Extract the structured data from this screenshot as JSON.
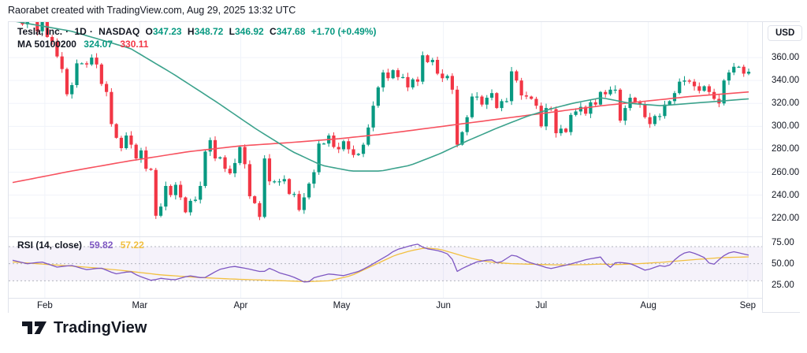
{
  "header": {
    "attribution": "Raorabet created with TradingView.com, Aug 29, 2025 13:32 UTC"
  },
  "legend": {
    "symbol": "Tesla, Inc.",
    "sep": "·",
    "resolution": "1D",
    "exchange": "NASDAQ",
    "ohlc": [
      {
        "label": "O",
        "value": "347.23"
      },
      {
        "label": "H",
        "value": "348.72"
      },
      {
        "label": "L",
        "value": "346.92"
      },
      {
        "label": "C",
        "value": "347.68"
      }
    ],
    "change": "+1.70 (+0.49%)"
  },
  "ma": {
    "label": "MA 50100200",
    "values": [
      "324.07",
      "330.11"
    ]
  },
  "rsi": {
    "label": "RSI (14, close)",
    "values": [
      "59.82",
      "57.22"
    ]
  },
  "axis": {
    "currency": "USD"
  },
  "footer": {
    "brand": "TradingView"
  },
  "colors": {
    "text": "#131722",
    "border": "#e0e3eb",
    "grid": "#f0f3fa",
    "up": "#089981",
    "down": "#f23645",
    "ma_fast": "#3ba28c",
    "ma_slow": "#f7525f",
    "rsi": "#7e57c2",
    "rsima": "#f2c040",
    "band_line": "#b2b5be",
    "band_fill": "rgba(126,87,194,0.08)",
    "oversold_fill": "rgba(242,54,69,0.18)"
  },
  "chart_data": {
    "type": "candlestick",
    "title": "Tesla, Inc · 1D · NASDAQ",
    "price_pane": {
      "ylim": [
        204,
        391
      ],
      "ticks": [
        {
          "v": 360,
          "l": "360.00"
        },
        {
          "v": 340,
          "l": "340.00"
        },
        {
          "v": 320,
          "l": "320.00"
        },
        {
          "v": 300,
          "l": "300.00"
        },
        {
          "v": 280,
          "l": "280.00"
        },
        {
          "v": 260,
          "l": "260.00"
        },
        {
          "v": 240,
          "l": "240.00"
        },
        {
          "v": 220,
          "l": "220.00"
        }
      ]
    },
    "months": [
      {
        "label": "Feb",
        "f": 0.048
      },
      {
        "label": "Mar",
        "f": 0.174
      },
      {
        "label": "Apr",
        "f": 0.308
      },
      {
        "label": "May",
        "f": 0.442
      },
      {
        "label": "Jun",
        "f": 0.577
      },
      {
        "label": "Jul",
        "f": 0.707
      },
      {
        "label": "Aug",
        "f": 0.849
      },
      {
        "label": "Sep",
        "f": 0.981
      }
    ],
    "candles": {
      "first_open": 394,
      "closes": [
        397,
        398,
        389,
        400,
        404,
        383,
        392,
        378,
        374,
        361,
        350,
        328,
        336,
        355,
        355,
        354,
        360,
        354,
        337,
        330,
        302,
        290,
        281,
        292,
        284,
        272,
        279,
        263,
        262,
        222,
        230,
        248,
        240,
        249,
        238,
        225,
        235,
        236,
        248,
        278,
        288,
        272,
        273,
        263,
        259,
        268,
        282,
        267,
        239,
        233,
        221,
        272,
        252,
        252,
        252,
        254,
        241,
        241,
        227,
        238,
        250,
        260,
        285,
        285,
        292,
        282,
        280,
        287,
        280,
        275,
        276,
        284,
        299,
        318,
        334,
        347,
        342,
        349,
        343,
        343,
        334,
        341,
        339,
        362,
        356,
        358,
        346,
        342,
        344,
        332,
        284,
        295,
        308,
        326,
        326,
        319,
        325,
        329,
        316,
        322,
        322,
        348,
        340,
        327,
        326,
        324,
        318,
        300,
        316,
        315,
        294,
        298,
        295,
        310,
        313,
        317,
        311,
        321,
        319,
        330,
        328,
        332,
        332,
        305,
        316,
        325,
        321,
        319,
        308,
        302,
        309,
        309,
        319,
        322,
        329,
        339,
        340,
        339,
        335,
        331,
        335,
        330,
        324,
        320,
        340,
        347,
        352,
        352,
        346,
        347.68
      ]
    },
    "ma_fast_anchors": [
      [
        0,
        392
      ],
      [
        0.08,
        383
      ],
      [
        0.16,
        368
      ],
      [
        0.22,
        345
      ],
      [
        0.28,
        320
      ],
      [
        0.33,
        298
      ],
      [
        0.38,
        278
      ],
      [
        0.42,
        266
      ],
      [
        0.46,
        261
      ],
      [
        0.5,
        261
      ],
      [
        0.54,
        266
      ],
      [
        0.58,
        276
      ],
      [
        0.62,
        288
      ],
      [
        0.66,
        299
      ],
      [
        0.7,
        309
      ],
      [
        0.73,
        315
      ],
      [
        0.76,
        320
      ],
      [
        0.8,
        325
      ],
      [
        0.84,
        320
      ],
      [
        0.88,
        318
      ],
      [
        0.92,
        320
      ],
      [
        0.96,
        322
      ],
      [
        1,
        324
      ]
    ],
    "ma_slow_anchors": [
      [
        0,
        251
      ],
      [
        0.08,
        261
      ],
      [
        0.16,
        270
      ],
      [
        0.24,
        278
      ],
      [
        0.31,
        283
      ],
      [
        0.38,
        286
      ],
      [
        0.44,
        289
      ],
      [
        0.5,
        293
      ],
      [
        0.56,
        298
      ],
      [
        0.62,
        303
      ],
      [
        0.68,
        308
      ],
      [
        0.74,
        313
      ],
      [
        0.8,
        318
      ],
      [
        0.86,
        322
      ],
      [
        0.92,
        326
      ],
      [
        1,
        330
      ]
    ],
    "rsi_pane": {
      "ylim": [
        10,
        82
      ],
      "band": [
        30,
        70
      ],
      "mid": 50,
      "ticks": [
        {
          "v": 75,
          "l": "75.00"
        },
        {
          "v": 50,
          "l": "50.00"
        },
        {
          "v": 25,
          "l": "25.00"
        }
      ],
      "rsi_anchors": [
        [
          0,
          54
        ],
        [
          0.02,
          50
        ],
        [
          0.04,
          52
        ],
        [
          0.06,
          46
        ],
        [
          0.08,
          48
        ],
        [
          0.1,
          43
        ],
        [
          0.12,
          45
        ],
        [
          0.14,
          38
        ],
        [
          0.16,
          41
        ],
        [
          0.17,
          36
        ],
        [
          0.19,
          30
        ],
        [
          0.2,
          33
        ],
        [
          0.22,
          31
        ],
        [
          0.24,
          36
        ],
        [
          0.26,
          33
        ],
        [
          0.28,
          43
        ],
        [
          0.3,
          47
        ],
        [
          0.32,
          44
        ],
        [
          0.34,
          40
        ],
        [
          0.35,
          45
        ],
        [
          0.36,
          40
        ],
        [
          0.38,
          35
        ],
        [
          0.39,
          31
        ],
        [
          0.4,
          27
        ],
        [
          0.41,
          34
        ],
        [
          0.43,
          38
        ],
        [
          0.45,
          36
        ],
        [
          0.47,
          41
        ],
        [
          0.48,
          45
        ],
        [
          0.5,
          55
        ],
        [
          0.51,
          60
        ],
        [
          0.52,
          66
        ],
        [
          0.54,
          71
        ],
        [
          0.55,
          73
        ],
        [
          0.56,
          68
        ],
        [
          0.58,
          65
        ],
        [
          0.595,
          60
        ],
        [
          0.605,
          39
        ],
        [
          0.61,
          44
        ],
        [
          0.63,
          52
        ],
        [
          0.65,
          55
        ],
        [
          0.66,
          50
        ],
        [
          0.68,
          61
        ],
        [
          0.7,
          52
        ],
        [
          0.72,
          47
        ],
        [
          0.73,
          44
        ],
        [
          0.75,
          48
        ],
        [
          0.76,
          50
        ],
        [
          0.78,
          55
        ],
        [
          0.8,
          58
        ],
        [
          0.81,
          44
        ],
        [
          0.82,
          52
        ],
        [
          0.84,
          50
        ],
        [
          0.85,
          46
        ],
        [
          0.86,
          42
        ],
        [
          0.88,
          48
        ],
        [
          0.89,
          46
        ],
        [
          0.9,
          55
        ],
        [
          0.91,
          62
        ],
        [
          0.92,
          64
        ],
        [
          0.93,
          61
        ],
        [
          0.94,
          57
        ],
        [
          0.95,
          47
        ],
        [
          0.96,
          55
        ],
        [
          0.97,
          62
        ],
        [
          0.98,
          64
        ],
        [
          0.99,
          62
        ],
        [
          1,
          60
        ]
      ],
      "rsima_anchors": [
        [
          0,
          52
        ],
        [
          0.05,
          49
        ],
        [
          0.1,
          46
        ],
        [
          0.15,
          42
        ],
        [
          0.2,
          37
        ],
        [
          0.25,
          34
        ],
        [
          0.3,
          32
        ],
        [
          0.35,
          30.5
        ],
        [
          0.4,
          29
        ],
        [
          0.43,
          30
        ],
        [
          0.46,
          36
        ],
        [
          0.48,
          44
        ],
        [
          0.5,
          52
        ],
        [
          0.52,
          60
        ],
        [
          0.54,
          65
        ],
        [
          0.56,
          68.5
        ],
        [
          0.58,
          67
        ],
        [
          0.6,
          62
        ],
        [
          0.62,
          57
        ],
        [
          0.64,
          53
        ],
        [
          0.66,
          51
        ],
        [
          0.68,
          50
        ],
        [
          0.7,
          49.5
        ],
        [
          0.72,
          49
        ],
        [
          0.75,
          48.5
        ],
        [
          0.78,
          49
        ],
        [
          0.8,
          49.5
        ],
        [
          0.82,
          49
        ],
        [
          0.85,
          50
        ],
        [
          0.88,
          51.5
        ],
        [
          0.9,
          53
        ],
        [
          0.93,
          55
        ],
        [
          0.96,
          57
        ],
        [
          1,
          58
        ]
      ]
    }
  }
}
